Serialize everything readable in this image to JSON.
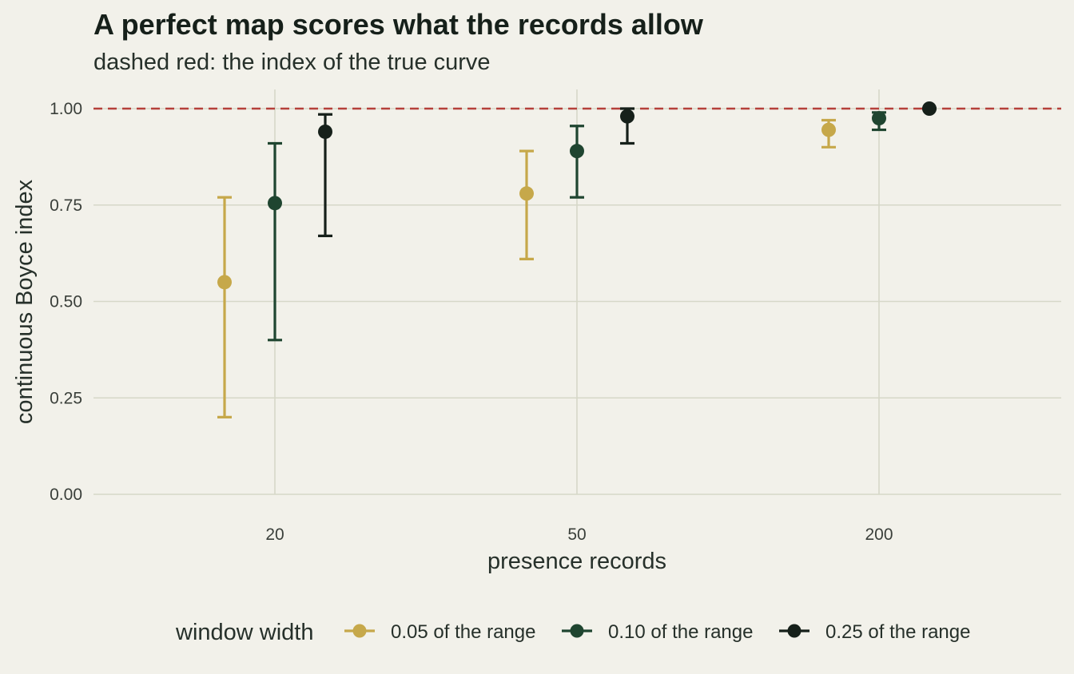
{
  "chart_data": {
    "type": "scatter",
    "title": "A perfect map scores what the records allow",
    "subtitle": "dashed red: the index of the true curve",
    "xlabel": "presence records",
    "ylabel": "continuous Boyce index",
    "categories": [
      "20",
      "50",
      "200"
    ],
    "y_ticks": [
      "0.00",
      "0.25",
      "0.50",
      "0.75",
      "1.00"
    ],
    "ylim": [
      0,
      1
    ],
    "reference_line": {
      "y": 1.0,
      "color": "#b5403a",
      "style": "dashed"
    },
    "legend": {
      "title": "window width",
      "position": "bottom"
    },
    "series": [
      {
        "name": "0.05 of the range",
        "color": "#c6a84a",
        "points": [
          {
            "x": "20",
            "y": 0.55,
            "lower": 0.2,
            "upper": 0.77
          },
          {
            "x": "50",
            "y": 0.78,
            "lower": 0.61,
            "upper": 0.89
          },
          {
            "x": "200",
            "y": 0.945,
            "lower": 0.9,
            "upper": 0.97
          }
        ]
      },
      {
        "name": "0.10 of the range",
        "color": "#1f4530",
        "points": [
          {
            "x": "20",
            "y": 0.755,
            "lower": 0.4,
            "upper": 0.91
          },
          {
            "x": "50",
            "y": 0.89,
            "lower": 0.77,
            "upper": 0.955
          },
          {
            "x": "200",
            "y": 0.975,
            "lower": 0.945,
            "upper": 0.99
          }
        ]
      },
      {
        "name": "0.25 of the range",
        "color": "#16201a",
        "points": [
          {
            "x": "20",
            "y": 0.94,
            "lower": 0.67,
            "upper": 0.985
          },
          {
            "x": "50",
            "y": 0.98,
            "lower": 0.91,
            "upper": 1.0
          },
          {
            "x": "200",
            "y": 1.0,
            "lower": 1.0,
            "upper": 1.0
          }
        ]
      }
    ]
  }
}
